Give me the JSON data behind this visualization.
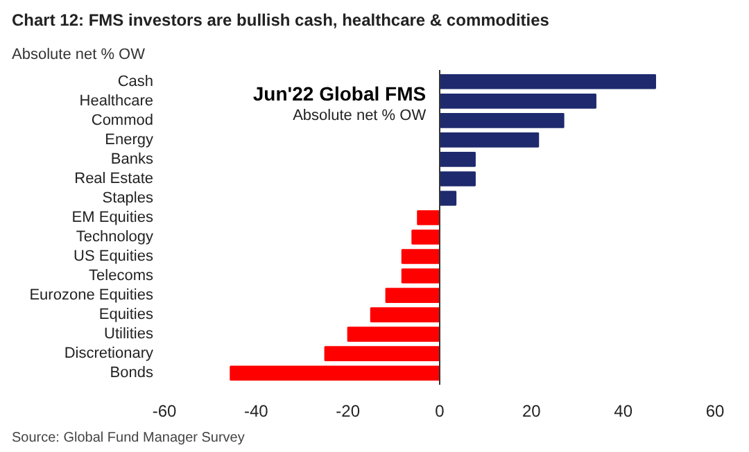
{
  "chart_data": {
    "type": "bar",
    "orientation": "horizontal",
    "title": "Chart 12: FMS investors are bullish cash, healthcare & commodities",
    "subtitle": "Absolute net % OW",
    "categories": [
      "Cash",
      "Healthcare",
      "Commod",
      "Energy",
      "Banks",
      "Real Estate",
      "Staples",
      "EM Equities",
      "Technology",
      "US Equities",
      "Telecoms",
      "Eurozone Equities",
      "Equities",
      "Utilities",
      "Discretionary",
      "Bonds"
    ],
    "values": [
      47,
      34,
      27,
      21.5,
      7.7,
      7.7,
      3.5,
      -4.8,
      -6,
      -8.2,
      -8.2,
      -11.7,
      -15,
      -20,
      -25,
      -45.6
    ],
    "colors": [
      "#1f2a6e",
      "#1f2a6e",
      "#1f2a6e",
      "#1f2a6e",
      "#1f2a6e",
      "#1f2a6e",
      "#1f2a6e",
      "#ff0000",
      "#ff0000",
      "#ff0000",
      "#ff0000",
      "#ff0000",
      "#ff0000",
      "#ff0000",
      "#ff0000",
      "#ff0000"
    ],
    "xlim": [
      -60,
      60
    ],
    "xticks": [
      -60,
      -40,
      -20,
      0,
      20,
      40,
      60
    ],
    "annotations": [
      "Jun'22 Global FMS",
      "Absolute net % OW",
      "Source: Global Fund Manager Survey"
    ]
  }
}
